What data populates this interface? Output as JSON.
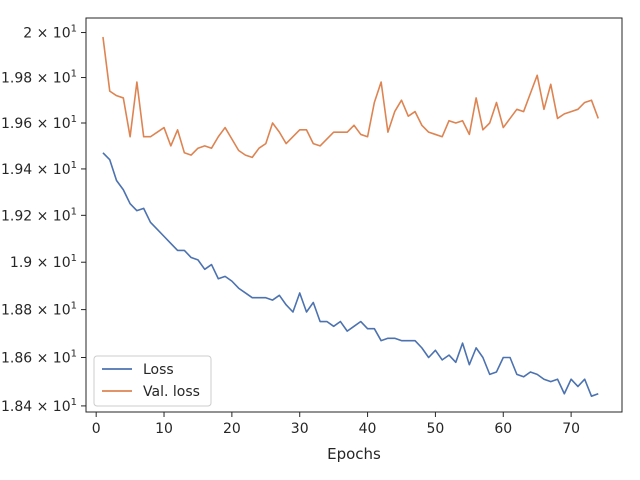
{
  "chart_data": {
    "type": "line",
    "xlabel": "Epochs",
    "ylabel": "",
    "xlim": [
      -1.5,
      77.5
    ],
    "ylim": [
      18.375,
      20.065
    ],
    "x_ticks": [
      0,
      10,
      20,
      30,
      40,
      50,
      60,
      70
    ],
    "y_ticks": [
      {
        "value": 18.4,
        "base": "1.84",
        "exp": "1"
      },
      {
        "value": 18.6,
        "base": "1.86",
        "exp": "1"
      },
      {
        "value": 18.8,
        "base": "1.88",
        "exp": "1"
      },
      {
        "value": 19.0,
        "base": "1.9",
        "exp": "1"
      },
      {
        "value": 19.2,
        "base": "1.92",
        "exp": "1"
      },
      {
        "value": 19.4,
        "base": "1.94",
        "exp": "1"
      },
      {
        "value": 19.6,
        "base": "1.96",
        "exp": "1"
      },
      {
        "value": 19.8,
        "base": "1.98",
        "exp": "1"
      },
      {
        "value": 20.0,
        "base": "2",
        "exp": "1"
      }
    ],
    "y_scale": "log",
    "grid": false,
    "legend_position": "bottom-left",
    "x": [
      1,
      2,
      3,
      4,
      5,
      6,
      7,
      8,
      9,
      10,
      11,
      12,
      13,
      14,
      15,
      16,
      17,
      18,
      19,
      20,
      21,
      22,
      23,
      24,
      25,
      26,
      27,
      28,
      29,
      30,
      31,
      32,
      33,
      34,
      35,
      36,
      37,
      38,
      39,
      40,
      41,
      42,
      43,
      44,
      45,
      46,
      47,
      48,
      49,
      50,
      51,
      52,
      53,
      54,
      55,
      56,
      57,
      58,
      59,
      60,
      61,
      62,
      63,
      64,
      65,
      66,
      67,
      68,
      69,
      70,
      71,
      72,
      73,
      74
    ],
    "series": [
      {
        "name": "Loss",
        "color": "#4c72b0",
        "values": [
          19.47,
          19.44,
          19.35,
          19.31,
          19.25,
          19.22,
          19.23,
          19.17,
          19.14,
          19.11,
          19.08,
          19.05,
          19.05,
          19.02,
          19.01,
          18.97,
          18.99,
          18.93,
          18.94,
          18.92,
          18.89,
          18.87,
          18.85,
          18.85,
          18.85,
          18.84,
          18.86,
          18.82,
          18.79,
          18.87,
          18.79,
          18.83,
          18.75,
          18.75,
          18.73,
          18.75,
          18.71,
          18.73,
          18.75,
          18.72,
          18.72,
          18.67,
          18.68,
          18.68,
          18.67,
          18.67,
          18.67,
          18.64,
          18.6,
          18.63,
          18.59,
          18.61,
          18.58,
          18.66,
          18.57,
          18.64,
          18.6,
          18.53,
          18.54,
          18.6,
          18.6,
          18.53,
          18.52,
          18.54,
          18.53,
          18.51,
          18.5,
          18.51,
          18.45,
          18.51,
          18.48,
          18.51,
          18.44,
          18.45
        ]
      },
      {
        "name": "Val. loss",
        "color": "#dd8452",
        "values": [
          19.98,
          19.74,
          19.72,
          19.71,
          19.54,
          19.78,
          19.54,
          19.54,
          19.56,
          19.58,
          19.5,
          19.57,
          19.47,
          19.46,
          19.49,
          19.5,
          19.49,
          19.54,
          19.58,
          19.53,
          19.48,
          19.46,
          19.45,
          19.49,
          19.51,
          19.6,
          19.56,
          19.51,
          19.54,
          19.57,
          19.57,
          19.51,
          19.5,
          19.53,
          19.56,
          19.56,
          19.56,
          19.59,
          19.55,
          19.54,
          19.69,
          19.78,
          19.56,
          19.65,
          19.7,
          19.63,
          19.65,
          19.59,
          19.56,
          19.55,
          19.54,
          19.61,
          19.6,
          19.61,
          19.55,
          19.71,
          19.57,
          19.6,
          19.69,
          19.58,
          19.62,
          19.66,
          19.65,
          19.73,
          19.81,
          19.66,
          19.77,
          19.62,
          19.64,
          19.65,
          19.66,
          19.69,
          19.7,
          19.62
        ]
      }
    ]
  }
}
